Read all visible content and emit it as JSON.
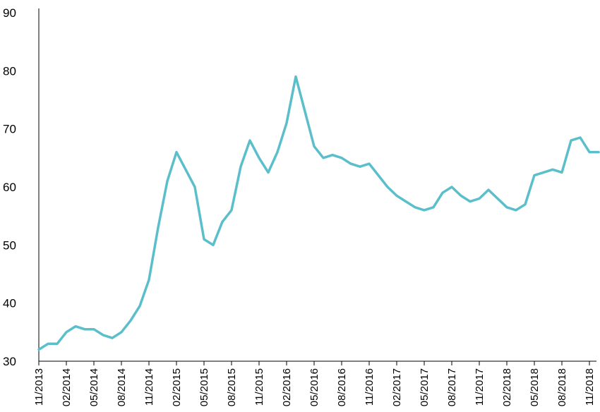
{
  "chart_data": {
    "type": "line",
    "title": "",
    "xlabel": "",
    "ylabel": "",
    "ylim": [
      30,
      90
    ],
    "y_ticks": [
      30,
      40,
      50,
      60,
      70,
      80,
      90
    ],
    "x_tick_labels": [
      "11/2013",
      "02/2014",
      "05/2014",
      "08/2014",
      "11/2014",
      "02/2015",
      "05/2015",
      "08/2015",
      "11/2015",
      "02/2016",
      "05/2016",
      "08/2016",
      "11/2016",
      "02/2017",
      "05/2017",
      "08/2017",
      "11/2017",
      "02/2018",
      "05/2018",
      "08/2018",
      "11/2018"
    ],
    "grid": false,
    "legend": "none",
    "series": [
      {
        "color": "#5bbfcb",
        "x": [
          "2013-11",
          "2013-12",
          "2014-01",
          "2014-02",
          "2014-03",
          "2014-04",
          "2014-05",
          "2014-06",
          "2014-07",
          "2014-08",
          "2014-09",
          "2014-10",
          "2014-11",
          "2014-12",
          "2015-01",
          "2015-02",
          "2015-03",
          "2015-04",
          "2015-05",
          "2015-06",
          "2015-07",
          "2015-08",
          "2015-09",
          "2015-10",
          "2015-11",
          "2015-12",
          "2016-01",
          "2016-02",
          "2016-03",
          "2016-04",
          "2016-05",
          "2016-06",
          "2016-07",
          "2016-08",
          "2016-09",
          "2016-10",
          "2016-11",
          "2016-12",
          "2017-01",
          "2017-02",
          "2017-03",
          "2017-04",
          "2017-05",
          "2017-06",
          "2017-07",
          "2017-08",
          "2017-09",
          "2017-10",
          "2017-11",
          "2017-12",
          "2018-01",
          "2018-02",
          "2018-03",
          "2018-04",
          "2018-05",
          "2018-06",
          "2018-07",
          "2018-08",
          "2018-09",
          "2018-10",
          "2018-11",
          "2018-12"
        ],
        "values": [
          32.0,
          33.0,
          33.0,
          35.0,
          36.0,
          35.5,
          35.5,
          34.5,
          34.0,
          35.0,
          37.0,
          39.5,
          44.0,
          53.0,
          61.0,
          66.0,
          63.0,
          60.0,
          51.0,
          50.0,
          54.0,
          56.0,
          63.5,
          68.0,
          65.0,
          62.5,
          66.0,
          71.0,
          79.0,
          73.0,
          67.0,
          65.0,
          65.5,
          65.0,
          64.0,
          63.5,
          64.0,
          62.0,
          60.0,
          58.5,
          57.5,
          56.5,
          56.0,
          56.5,
          59.0,
          60.0,
          58.5,
          57.5,
          58.0,
          59.5,
          58.0,
          56.5,
          56.0,
          57.0,
          62.0,
          62.5,
          63.0,
          62.5,
          68.0,
          68.5,
          66.0,
          66.0
        ]
      }
    ]
  }
}
